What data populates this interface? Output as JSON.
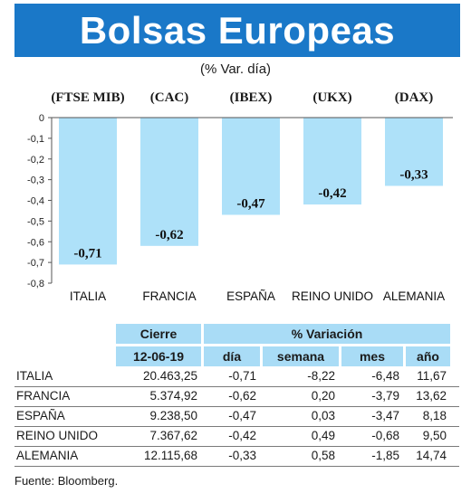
{
  "header": {
    "title": "Bolsas Europeas",
    "subtitle": "(% Var. día)"
  },
  "chart_data": {
    "type": "bar",
    "categories": [
      "ITALIA",
      "FRANCIA",
      "ESPAÑA",
      "REINO UNIDO",
      "ALEMANIA"
    ],
    "index_labels": [
      "(FTSE MIB)",
      "(CAC)",
      "(IBEX)",
      "(UKX)",
      "(DAX)"
    ],
    "values": [
      -0.71,
      -0.62,
      -0.47,
      -0.42,
      -0.33
    ],
    "value_labels": [
      "-0,71",
      "-0,62",
      "-0,47",
      "-0,42",
      "-0,33"
    ],
    "ylim": [
      -0.8,
      0
    ],
    "yticks": [
      0,
      -0.1,
      -0.2,
      -0.3,
      -0.4,
      -0.5,
      -0.6,
      -0.7,
      -0.8
    ],
    "ytick_labels": [
      "0",
      "-0,1",
      "-0,2",
      "-0,3",
      "-0,4",
      "-0,5",
      "-0,6",
      "-0,7",
      "-0,8"
    ],
    "bar_color": "#aee1f9",
    "grid": false
  },
  "table": {
    "group_headers": {
      "close": "Cierre",
      "variation": "% Variación"
    },
    "date": "12-06-19",
    "columns": [
      "día",
      "semana",
      "mes",
      "año"
    ],
    "rows": [
      {
        "name": "ITALIA",
        "close": "20.463,25",
        "dia": "-0,71",
        "semana": "-8,22",
        "mes": "-6,48",
        "ano": "11,67"
      },
      {
        "name": "FRANCIA",
        "close": "5.374,92",
        "dia": "-0,62",
        "semana": "0,20",
        "mes": "-3,79",
        "ano": "13,62"
      },
      {
        "name": "ESPAÑA",
        "close": "9.238,50",
        "dia": "-0,47",
        "semana": "0,03",
        "mes": "-3,47",
        "ano": "8,18"
      },
      {
        "name": "REINO UNIDO",
        "close": "7.367,62",
        "dia": "-0,42",
        "semana": "0,49",
        "mes": "-0,68",
        "ano": "9,50"
      },
      {
        "name": "ALEMANIA",
        "close": "12.115,68",
        "dia": "-0,33",
        "semana": "0,58",
        "mes": "-1,85",
        "ano": "14,74"
      }
    ]
  },
  "source": "Fuente: Bloomberg."
}
